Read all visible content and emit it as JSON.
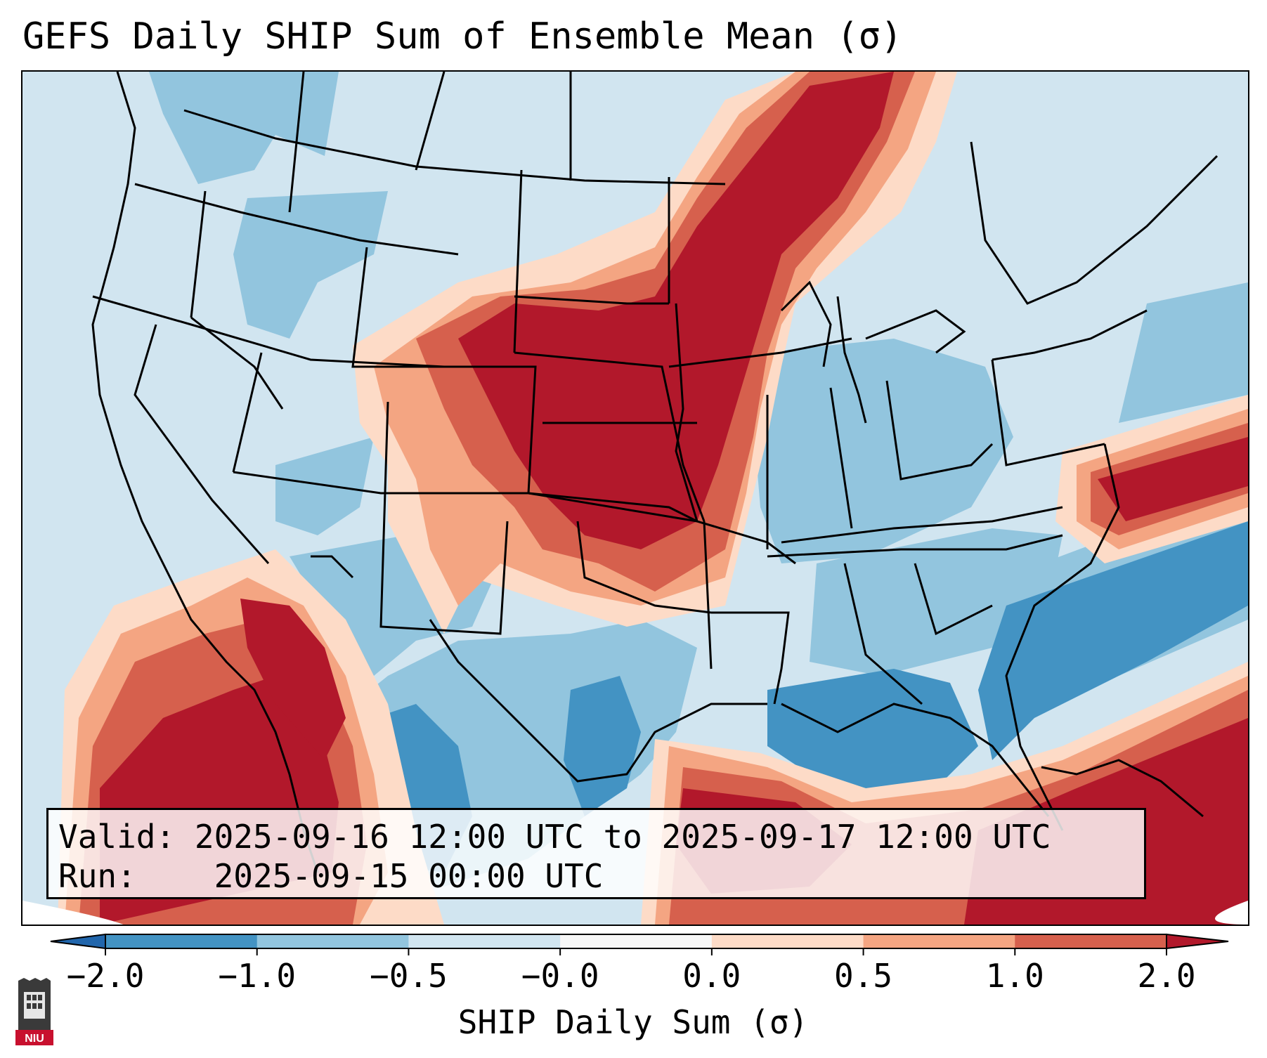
{
  "title": "GEFS Daily SHIP Sum of Ensemble Mean (σ)",
  "info": {
    "valid_label": "Valid:",
    "valid_value": "2025-09-16 12:00 UTC to 2025-09-17 12:00 UTC",
    "run_label": "Run:",
    "run_value": "2025-09-15 00:00 UTC"
  },
  "colorbar": {
    "label": "SHIP Daily Sum (σ)",
    "ticks": [
      "−2.0",
      "−1.0",
      "−0.5",
      "−0.0",
      "0.0",
      "0.5",
      "1.0",
      "2.0"
    ],
    "bins": [
      {
        "range": "< -2.0",
        "color": "#2166ac"
      },
      {
        "range": "-2.0 to -1.0",
        "color": "#4393c3"
      },
      {
        "range": "-1.0 to -0.5",
        "color": "#92c5de"
      },
      {
        "range": "-0.5 to -0.0",
        "color": "#d1e5f0"
      },
      {
        "range": "-0.0 to 0.0",
        "color": "#f7f7f7"
      },
      {
        "range": "0.0 to 0.5",
        "color": "#fddbc7"
      },
      {
        "range": "0.5 to 1.0",
        "color": "#f4a582"
      },
      {
        "range": "1.0 to 2.0",
        "color": "#d6604d"
      },
      {
        "range": "> 2.0",
        "color": "#b2182b"
      }
    ]
  },
  "logo": {
    "text": "NIU",
    "icon": "niu-logo-icon"
  }
}
